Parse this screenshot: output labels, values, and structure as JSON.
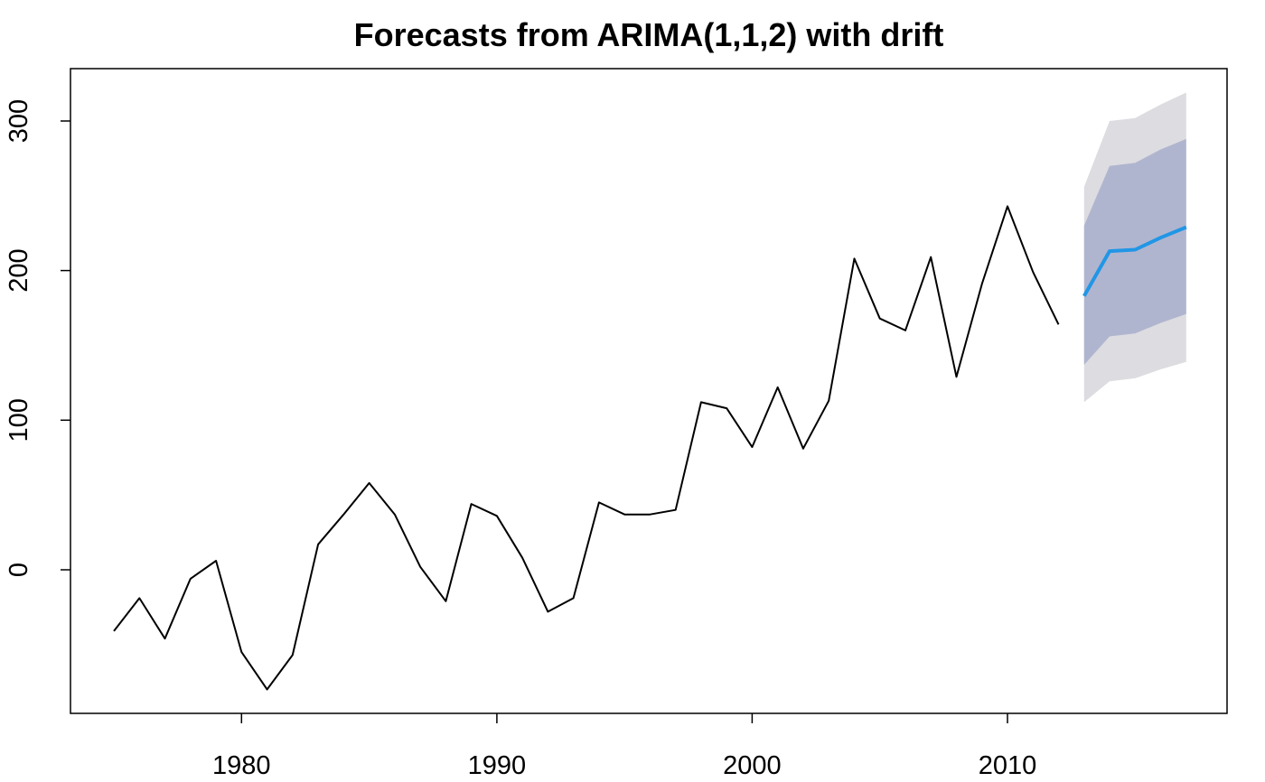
{
  "chart_data": {
    "type": "line",
    "title": "Forecasts from ARIMA(1,1,2) with drift",
    "xlabel": "",
    "ylabel": "",
    "xlim": [
      1973.3,
      2018.6
    ],
    "ylim": [
      -96,
      335
    ],
    "x_ticks": [
      {
        "value": 1980,
        "label": "1980"
      },
      {
        "value": 1990,
        "label": "1990"
      },
      {
        "value": 2000,
        "label": "2000"
      },
      {
        "value": 2010,
        "label": "2010"
      }
    ],
    "y_ticks": [
      {
        "value": 0,
        "label": "0"
      },
      {
        "value": 100,
        "label": "100"
      },
      {
        "value": 200,
        "label": "200"
      },
      {
        "value": 300,
        "label": "300"
      }
    ],
    "grid": false,
    "observed": {
      "color": "#000000",
      "x": [
        1975,
        1976,
        1977,
        1978,
        1979,
        1980,
        1981,
        1982,
        1983,
        1984,
        1985,
        1986,
        1987,
        1988,
        1989,
        1990,
        1991,
        1992,
        1993,
        1994,
        1995,
        1996,
        1997,
        1998,
        1999,
        2000,
        2001,
        2002,
        2003,
        2004,
        2005,
        2006,
        2007,
        2008,
        2009,
        2010,
        2011,
        2012
      ],
      "y": [
        -41,
        -19,
        -46,
        -6,
        6,
        -55,
        -80,
        -57,
        17,
        37,
        58,
        37,
        2,
        -21,
        44,
        36,
        8,
        -28,
        -19,
        45,
        37,
        37,
        40,
        112,
        108,
        82,
        122,
        81,
        113,
        208,
        168,
        160,
        209,
        129,
        191,
        243,
        199,
        164
      ]
    },
    "forecast": {
      "color": "#2196e6",
      "x": [
        2013,
        2014,
        2015,
        2016,
        2017
      ],
      "mean": [
        183,
        213,
        214,
        222,
        229
      ],
      "interval80": {
        "color": "#b0b5cf",
        "lower": [
          137,
          156,
          158,
          165,
          171
        ],
        "upper": [
          230,
          270,
          272,
          281,
          288
        ]
      },
      "interval95": {
        "color": "#dcdce1",
        "lower": [
          112,
          126,
          128,
          134,
          139
        ],
        "upper": [
          256,
          300,
          302,
          311,
          319
        ]
      }
    }
  }
}
